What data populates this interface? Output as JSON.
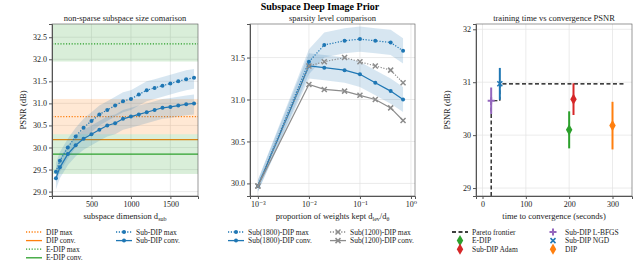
{
  "title": "Subspace Deep Image Prior",
  "chart_data": [
    {
      "type": "line",
      "title": "non-sparse subspace size comarison",
      "xlabel": [
        {
          "text": "subspace dimension d"
        },
        {
          "text": "sub",
          "sub": true
        }
      ],
      "ylabel": "PSNR (dB)",
      "xlim": [
        0,
        1850
      ],
      "ylim": [
        28.9,
        32.8
      ],
      "xticks": [
        500,
        1000,
        1500
      ],
      "yticks": [
        {
          "value": 29,
          "label": "29.0"
        },
        29.5,
        {
          "value": 30,
          "label": "30.0"
        },
        30.5,
        {
          "value": 31,
          "label": "31.0"
        },
        31.5,
        {
          "value": 32,
          "label": "32.0"
        },
        32.5
      ],
      "grid": true,
      "legend": "bottom",
      "series": [
        {
          "name": "DIP max",
          "type": "hline",
          "color": "#ff7f0e",
          "line_style": "dotted",
          "marker": "none",
          "value": 30.7,
          "lower": 30.3,
          "upper": 31.1
        },
        {
          "name": "DIP conv.",
          "type": "hline",
          "color": "#ff7f0e",
          "line_style": "solid",
          "marker": "none",
          "value": 30.18
        },
        {
          "name": "E-DIP max",
          "type": "hline",
          "color": "#2ca02c",
          "line_style": "dotted",
          "marker": "none",
          "value": 32.35,
          "lower": 31.95,
          "upper": 32.8
        },
        {
          "name": "E-DIP conv.",
          "type": "hline",
          "color": "#2ca02c",
          "line_style": "solid",
          "marker": "none",
          "value": 29.85,
          "lower": 29.4,
          "upper": 30.3
        },
        {
          "name": "Sub-DIP max",
          "type": "line",
          "color": "#1f77b4",
          "line_style": "dotted",
          "marker": "circle",
          "x": [
            50,
            100,
            200,
            300,
            400,
            500,
            600,
            700,
            800,
            900,
            1000,
            1100,
            1200,
            1300,
            1400,
            1500,
            1600,
            1700,
            1800
          ],
          "values": [
            29.45,
            29.7,
            30.0,
            30.25,
            30.45,
            30.6,
            30.75,
            30.85,
            30.95,
            31.05,
            31.1,
            31.2,
            31.3,
            31.35,
            31.4,
            31.45,
            31.5,
            31.55,
            31.58
          ],
          "lower": [
            29.2,
            29.45,
            29.75,
            30.0,
            30.2,
            30.35,
            30.5,
            30.6,
            30.7,
            30.8,
            30.85,
            30.95,
            31.05,
            31.1,
            31.15,
            31.2,
            31.25,
            31.3,
            31.33
          ],
          "upper": [
            29.65,
            29.9,
            30.2,
            30.45,
            30.65,
            30.8,
            30.95,
            31.05,
            31.15,
            31.25,
            31.3,
            31.4,
            31.5,
            31.55,
            31.6,
            31.65,
            31.7,
            31.75,
            31.78
          ]
        },
        {
          "name": "Sub-DIP conv.",
          "type": "line",
          "color": "#1f77b4",
          "line_style": "solid",
          "marker": "circle",
          "x": [
            50,
            100,
            200,
            300,
            400,
            500,
            600,
            700,
            800,
            900,
            1000,
            1100,
            1200,
            1300,
            1400,
            1500,
            1600,
            1700,
            1800
          ],
          "values": [
            29.3,
            29.55,
            29.85,
            30.05,
            30.2,
            30.3,
            30.4,
            30.5,
            30.55,
            30.65,
            30.7,
            30.75,
            30.8,
            30.85,
            30.9,
            30.92,
            30.95,
            30.98,
            31.0
          ],
          "lower": [
            29.05,
            29.3,
            29.6,
            29.8,
            29.95,
            30.05,
            30.15,
            30.25,
            30.3,
            30.4,
            30.45,
            30.5,
            30.55,
            30.6,
            30.65,
            30.67,
            30.7,
            30.73,
            30.75
          ],
          "upper": [
            29.5,
            29.75,
            30.05,
            30.25,
            30.4,
            30.5,
            30.6,
            30.7,
            30.75,
            30.85,
            30.9,
            30.95,
            31.0,
            31.05,
            31.1,
            31.12,
            31.15,
            31.18,
            31.2
          ]
        }
      ]
    },
    {
      "type": "line",
      "title": "sparsity level comparison",
      "log": "x",
      "xlabel": [
        {
          "text": "proportion of weights kept d"
        },
        {
          "text": "lev",
          "sub": true
        },
        {
          "text": "/d"
        },
        {
          "text": "θ",
          "sub": true
        }
      ],
      "xlim": [
        0.0007,
        1.2
      ],
      "ylim": [
        29.85,
        31.9
      ],
      "xticks": [
        {
          "value": 0.001,
          "label": "10⁻³"
        },
        {
          "value": 0.01,
          "label": "10⁻²"
        },
        {
          "value": 0.1,
          "label": "10⁻¹"
        },
        {
          "value": 1,
          "label": "10⁰"
        }
      ],
      "yticks": [
        {
          "value": 30,
          "label": "30.0"
        },
        30.5,
        {
          "value": 31,
          "label": "31.0"
        },
        31.5
      ],
      "grid": true,
      "legend": "bottom",
      "series": [
        {
          "name": "Sub(1800)-DIP max",
          "type": "line",
          "color": "#1f77b4",
          "line_style": "dotted",
          "marker": "circle",
          "x": [
            0.001,
            0.01,
            0.02,
            0.05,
            0.1,
            0.2,
            0.4,
            0.7
          ],
          "values": [
            29.97,
            31.45,
            31.65,
            31.7,
            31.72,
            31.7,
            31.68,
            31.58
          ],
          "lower": [
            29.9,
            31.3,
            31.5,
            31.55,
            31.57,
            31.55,
            31.53,
            31.43
          ],
          "upper": [
            30.04,
            31.6,
            31.8,
            31.85,
            31.87,
            31.85,
            31.83,
            31.73
          ]
        },
        {
          "name": "Sub(1800)-DIP conv.",
          "type": "line",
          "color": "#1f77b4",
          "line_style": "solid",
          "marker": "circle",
          "x": [
            0.001,
            0.01,
            0.02,
            0.05,
            0.1,
            0.2,
            0.4,
            0.7
          ],
          "values": [
            29.97,
            31.4,
            31.38,
            31.35,
            31.3,
            31.2,
            31.1,
            31.0
          ],
          "lower": [
            29.9,
            31.25,
            31.23,
            31.2,
            31.15,
            31.05,
            30.95,
            30.85
          ],
          "upper": [
            30.04,
            31.55,
            31.53,
            31.5,
            31.45,
            31.35,
            31.25,
            31.15
          ]
        },
        {
          "name": "Sub(1200)-DIP max",
          "type": "line",
          "color": "#8c8c8c",
          "line_style": "dotted",
          "marker": "x",
          "x": [
            0.001,
            0.01,
            0.02,
            0.05,
            0.1,
            0.2,
            0.4,
            0.7
          ],
          "values": [
            29.97,
            31.4,
            31.45,
            31.5,
            31.45,
            31.4,
            31.35,
            31.2
          ]
        },
        {
          "name": "Sub(1200)-DIP conv.",
          "type": "line",
          "color": "#8c8c8c",
          "line_style": "solid",
          "marker": "x",
          "x": [
            0.001,
            0.01,
            0.02,
            0.05,
            0.1,
            0.2,
            0.4,
            0.7
          ],
          "values": [
            29.97,
            31.18,
            31.12,
            31.1,
            31.05,
            31.0,
            30.9,
            30.75
          ]
        }
      ]
    },
    {
      "type": "scatter",
      "title": "training time vs convergence PSNR",
      "xlabel": "time to convergence (seconds)",
      "ylabel": "PSNR (dB)",
      "xlim": [
        -15,
        345
      ],
      "ylim": [
        28.85,
        32.1
      ],
      "xticks": [
        0,
        100,
        200,
        300
      ],
      "yticks": [
        29,
        30,
        31,
        32
      ],
      "grid": true,
      "legend": "bottom",
      "series": [
        {
          "name": "Pareto frontier",
          "type": "line",
          "color": "#000000",
          "line_style": "dashed",
          "marker": "none",
          "x": [
            20,
            20,
            40,
            40,
            330
          ],
          "values": [
            28.85,
            30.65,
            30.65,
            30.97,
            30.97
          ]
        },
        {
          "name": "E-DIP",
          "type": "scatter",
          "color": "#2ca02c",
          "marker": "diamond",
          "x": [
            200
          ],
          "values": [
            30.1
          ],
          "errors": [
            0.35
          ]
        },
        {
          "name": "Sub-DIP Adam",
          "type": "scatter",
          "color": "#d62728",
          "marker": "diamond",
          "x": [
            210
          ],
          "values": [
            30.68
          ],
          "errors": [
            0.3
          ]
        },
        {
          "name": "Sub-DIP L-BFGS",
          "type": "scatter",
          "color": "#9467bd",
          "marker": "plus",
          "x": [
            20
          ],
          "values": [
            30.65
          ],
          "errors": [
            0.25
          ]
        },
        {
          "name": "Sub-DIP NGD",
          "type": "scatter",
          "color": "#1f77b4",
          "marker": "x",
          "x": [
            40
          ],
          "values": [
            30.97
          ],
          "errors": [
            0.3
          ]
        },
        {
          "name": "DIP",
          "type": "scatter",
          "color": "#ff7f0e",
          "marker": "diamond",
          "x": [
            300
          ],
          "values": [
            30.18
          ],
          "errors": [
            0.45
          ]
        }
      ]
    }
  ]
}
